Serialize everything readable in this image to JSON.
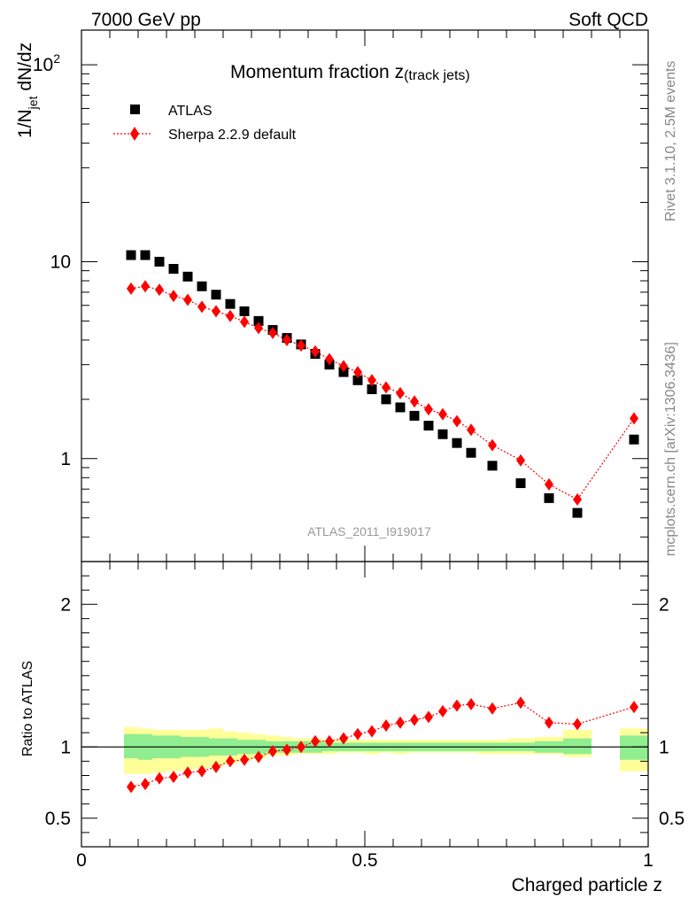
{
  "header": {
    "left": "7000 GeV pp",
    "right": "Soft QCD"
  },
  "side_text": {
    "rivet": "Rivet 3.1.10,  2.5M events",
    "mcplots": "mcplots.cern.ch [arXiv:1306.3436]"
  },
  "chart_data": [
    {
      "type": "scatter",
      "title_main": "Momentum fraction z",
      "title_sub": "(track jets)",
      "ylabel_main": "1/N",
      "ylabel_sub": "jet",
      "ylabel_rest": " dN/dz",
      "xlim": [
        0,
        1.0
      ],
      "ylim": [
        0.3,
        150
      ],
      "log_y": true,
      "y_ticks": [
        {
          "v": 1,
          "label": "1"
        },
        {
          "v": 10,
          "label": "10"
        },
        {
          "v": 100,
          "label": "10",
          "sup": "2"
        }
      ],
      "watermark": "ATLAS_2011_I919017",
      "legend": [
        {
          "name": "ATLAS",
          "marker": "square",
          "color": "#000000"
        },
        {
          "name": "Sherpa 2.2.9 default",
          "marker": "diamond",
          "color": "#ff0000"
        }
      ],
      "series": [
        {
          "name": "ATLAS",
          "color": "#000000",
          "x": [
            0.0875,
            0.1125,
            0.1375,
            0.1625,
            0.1875,
            0.2125,
            0.2375,
            0.2625,
            0.2875,
            0.3125,
            0.3375,
            0.3625,
            0.3875,
            0.4125,
            0.4375,
            0.4625,
            0.4875,
            0.5125,
            0.5375,
            0.5625,
            0.5875,
            0.6125,
            0.6375,
            0.6625,
            0.6875,
            0.725,
            0.775,
            0.825,
            0.875,
            0.975
          ],
          "y": [
            10.8,
            10.8,
            10.0,
            9.2,
            8.4,
            7.5,
            6.8,
            6.1,
            5.6,
            5.0,
            4.5,
            4.1,
            3.8,
            3.4,
            3.0,
            2.75,
            2.5,
            2.25,
            2.0,
            1.82,
            1.65,
            1.47,
            1.33,
            1.2,
            1.07,
            0.92,
            0.75,
            0.63,
            0.53,
            1.25
          ]
        },
        {
          "name": "Sherpa 2.2.9 default",
          "color": "#ff0000",
          "x": [
            0.0875,
            0.1125,
            0.1375,
            0.1625,
            0.1875,
            0.2125,
            0.2375,
            0.2625,
            0.2875,
            0.3125,
            0.3375,
            0.3625,
            0.3875,
            0.4125,
            0.4375,
            0.4625,
            0.4875,
            0.5125,
            0.5375,
            0.5625,
            0.5875,
            0.6125,
            0.6375,
            0.6625,
            0.6875,
            0.725,
            0.775,
            0.825,
            0.875,
            0.975
          ],
          "y": [
            7.3,
            7.5,
            7.2,
            6.7,
            6.4,
            5.9,
            5.6,
            5.3,
            4.95,
            4.6,
            4.35,
            4.0,
            3.75,
            3.5,
            3.2,
            2.95,
            2.75,
            2.5,
            2.3,
            2.15,
            1.95,
            1.78,
            1.68,
            1.55,
            1.4,
            1.17,
            0.98,
            0.74,
            0.62,
            1.6
          ]
        }
      ]
    },
    {
      "type": "scatter",
      "ylabel": "Ratio to ATLAS",
      "xlabel": "Charged particle z",
      "xlim": [
        0,
        1.0
      ],
      "ylim": [
        0.3,
        2.3
      ],
      "y_ticks": [
        {
          "v": 0.5,
          "label": "0.5"
        },
        {
          "v": 1,
          "label": "1"
        },
        {
          "v": 2,
          "label": "2"
        }
      ],
      "x_ticks": [
        {
          "v": 0,
          "label": "0"
        },
        {
          "v": 0.5,
          "label": "0.5"
        },
        {
          "v": 1,
          "label": "1"
        }
      ],
      "reference_line": 1.0,
      "bands": {
        "inner_color": "#90ee90",
        "outer_color": "#ffff99",
        "bins": [
          {
            "lo": 0.075,
            "hi": 0.1,
            "inner": [
              0.92,
              1.09
            ],
            "outer": [
              0.81,
              1.14
            ]
          },
          {
            "lo": 0.1,
            "hi": 0.125,
            "inner": [
              0.91,
              1.09
            ],
            "outer": [
              0.81,
              1.13
            ]
          },
          {
            "lo": 0.125,
            "hi": 0.15,
            "inner": [
              0.92,
              1.08
            ],
            "outer": [
              0.82,
              1.12
            ]
          },
          {
            "lo": 0.15,
            "hi": 0.175,
            "inner": [
              0.92,
              1.08
            ],
            "outer": [
              0.83,
              1.12
            ]
          },
          {
            "lo": 0.175,
            "hi": 0.2,
            "inner": [
              0.93,
              1.07
            ],
            "outer": [
              0.84,
              1.12
            ]
          },
          {
            "lo": 0.2,
            "hi": 0.225,
            "inner": [
              0.93,
              1.07
            ],
            "outer": [
              0.85,
              1.12
            ]
          },
          {
            "lo": 0.225,
            "hi": 0.25,
            "inner": [
              0.94,
              1.06
            ],
            "outer": [
              0.86,
              1.13
            ]
          },
          {
            "lo": 0.25,
            "hi": 0.275,
            "inner": [
              0.94,
              1.06
            ],
            "outer": [
              0.88,
              1.11
            ]
          },
          {
            "lo": 0.275,
            "hi": 0.3,
            "inner": [
              0.95,
              1.05
            ],
            "outer": [
              0.9,
              1.1
            ]
          },
          {
            "lo": 0.3,
            "hi": 0.325,
            "inner": [
              0.95,
              1.05
            ],
            "outer": [
              0.92,
              1.09
            ]
          },
          {
            "lo": 0.325,
            "hi": 0.35,
            "inner": [
              0.96,
              1.04
            ],
            "outer": [
              0.94,
              1.08
            ]
          },
          {
            "lo": 0.35,
            "hi": 0.375,
            "inner": [
              0.96,
              1.04
            ],
            "outer": [
              0.94,
              1.07
            ]
          },
          {
            "lo": 0.375,
            "hi": 0.4,
            "inner": [
              0.96,
              1.04
            ],
            "outer": [
              0.95,
              1.06
            ]
          },
          {
            "lo": 0.4,
            "hi": 0.425,
            "inner": [
              0.96,
              1.04
            ],
            "outer": [
              0.95,
              1.06
            ]
          },
          {
            "lo": 0.425,
            "hi": 0.45,
            "inner": [
              0.97,
              1.03
            ],
            "outer": [
              0.95,
              1.05
            ]
          },
          {
            "lo": 0.45,
            "hi": 0.475,
            "inner": [
              0.97,
              1.03
            ],
            "outer": [
              0.96,
              1.05
            ]
          },
          {
            "lo": 0.475,
            "hi": 0.5,
            "inner": [
              0.97,
              1.03
            ],
            "outer": [
              0.96,
              1.05
            ]
          },
          {
            "lo": 0.5,
            "hi": 0.525,
            "inner": [
              0.97,
              1.03
            ],
            "outer": [
              0.95,
              1.05
            ]
          },
          {
            "lo": 0.525,
            "hi": 0.55,
            "inner": [
              0.97,
              1.03
            ],
            "outer": [
              0.96,
              1.05
            ]
          },
          {
            "lo": 0.55,
            "hi": 0.575,
            "inner": [
              0.97,
              1.03
            ],
            "outer": [
              0.95,
              1.05
            ]
          },
          {
            "lo": 0.575,
            "hi": 0.6,
            "inner": [
              0.97,
              1.03
            ],
            "outer": [
              0.96,
              1.05
            ]
          },
          {
            "lo": 0.6,
            "hi": 0.625,
            "inner": [
              0.97,
              1.03
            ],
            "outer": [
              0.96,
              1.05
            ]
          },
          {
            "lo": 0.625,
            "hi": 0.65,
            "inner": [
              0.97,
              1.03
            ],
            "outer": [
              0.96,
              1.05
            ]
          },
          {
            "lo": 0.65,
            "hi": 0.675,
            "inner": [
              0.97,
              1.03
            ],
            "outer": [
              0.96,
              1.05
            ]
          },
          {
            "lo": 0.675,
            "hi": 0.7,
            "inner": [
              0.97,
              1.03
            ],
            "outer": [
              0.96,
              1.05
            ]
          },
          {
            "lo": 0.7,
            "hi": 0.75,
            "inner": [
              0.97,
              1.03
            ],
            "outer": [
              0.95,
              1.05
            ]
          },
          {
            "lo": 0.75,
            "hi": 0.8,
            "inner": [
              0.97,
              1.03
            ],
            "outer": [
              0.95,
              1.06
            ]
          },
          {
            "lo": 0.8,
            "hi": 0.85,
            "inner": [
              0.96,
              1.04
            ],
            "outer": [
              0.95,
              1.07
            ]
          },
          {
            "lo": 0.85,
            "hi": 0.9,
            "inner": [
              0.95,
              1.06
            ],
            "outer": [
              0.93,
              1.12
            ]
          },
          {
            "lo": 0.95,
            "hi": 1.0,
            "inner": [
              0.91,
              1.08
            ],
            "outer": [
              0.83,
              1.13
            ]
          }
        ]
      },
      "series": [
        {
          "name": "Sherpa 2.2.9 default",
          "color": "#ff0000",
          "x": [
            0.0875,
            0.1125,
            0.1375,
            0.1625,
            0.1875,
            0.2125,
            0.2375,
            0.2625,
            0.2875,
            0.3125,
            0.3375,
            0.3625,
            0.3875,
            0.4125,
            0.4375,
            0.4625,
            0.4875,
            0.5125,
            0.5375,
            0.5625,
            0.5875,
            0.6125,
            0.6375,
            0.6625,
            0.6875,
            0.725,
            0.775,
            0.825,
            0.875,
            0.975
          ],
          "y": [
            0.72,
            0.74,
            0.78,
            0.79,
            0.82,
            0.83,
            0.86,
            0.9,
            0.91,
            0.93,
            0.97,
            0.98,
            1.0,
            1.04,
            1.04,
            1.06,
            1.09,
            1.11,
            1.15,
            1.17,
            1.19,
            1.21,
            1.25,
            1.29,
            1.3,
            1.27,
            1.31,
            1.17,
            1.16,
            1.28
          ]
        }
      ]
    }
  ]
}
